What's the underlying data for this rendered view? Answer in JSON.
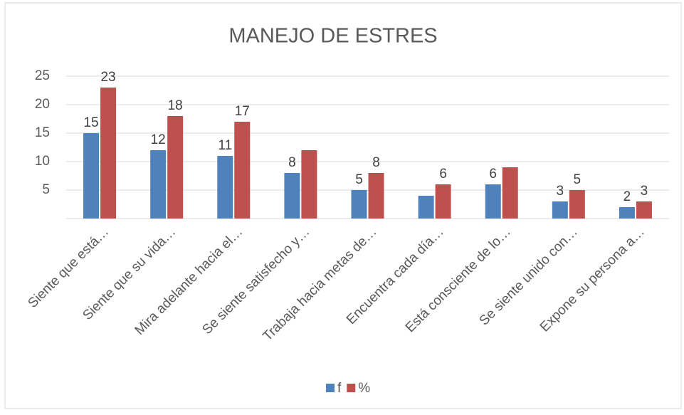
{
  "chart_data": {
    "type": "bar",
    "title": "MANEJO DE ESTRES",
    "categories": [
      "Siente que está…",
      "Siente que su vida…",
      "Mira adelante hacia el…",
      "Se siente satisfecho y…",
      "Trabaja hacia metas de…",
      "Encuentra cada día…",
      "Está consciente de lo…",
      "Se siente unido con…",
      "Expone su persona a…"
    ],
    "series": [
      {
        "name": "f",
        "color": "#4f81bd",
        "values": [
          15,
          12,
          11,
          8,
          5,
          4,
          6,
          3,
          2
        ],
        "value_labels": [
          "15",
          "12",
          "11",
          "8",
          "5",
          null,
          "6",
          "3",
          "2"
        ]
      },
      {
        "name": "%",
        "color": "#c0504d",
        "values": [
          23,
          18,
          17,
          12,
          8,
          6,
          9,
          5,
          3
        ],
        "value_labels": [
          "23",
          "18",
          "17",
          null,
          "8",
          "6",
          null,
          "5",
          "3"
        ]
      }
    ],
    "ylim": [
      0,
      25
    ],
    "yticks": [
      5,
      10,
      15,
      20,
      25
    ],
    "grid": true,
    "legend": "bottom"
  }
}
